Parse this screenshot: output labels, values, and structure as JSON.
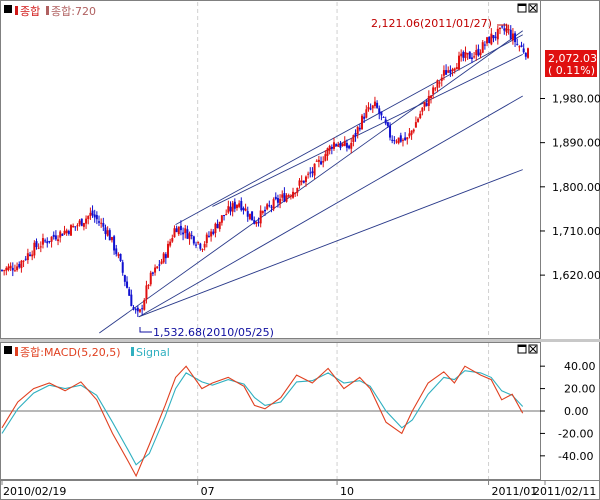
{
  "main_panel": {
    "legend_items": [
      {
        "label": "종합",
        "color": "#d01818"
      },
      {
        "label": "종합:720",
        "color": "#b06060"
      }
    ],
    "price_ticks": [
      {
        "value": 1980,
        "label": "1,980.00"
      },
      {
        "value": 1890,
        "label": "1,890.00"
      },
      {
        "value": 1800,
        "label": "1,800.00"
      },
      {
        "value": 1710,
        "label": "1,710.00"
      },
      {
        "value": 1620,
        "label": "1,620.00"
      }
    ],
    "high_annotation": "2,121.06(2011/01/27)",
    "low_annotation": "1,532.68(2010/05/25)",
    "current_price": "2,072.03",
    "current_change": "( 0.11%)",
    "colors": {
      "up": "#e01010",
      "down": "#1010d0",
      "trendline": "#2a3a8a",
      "badge": "#e01010"
    }
  },
  "macd_panel": {
    "legend_items": [
      {
        "label": "종합:MACD(5,20,5)",
        "color": "#e04020"
      },
      {
        "label": "Signal",
        "color": "#30b0c0"
      }
    ],
    "ticks": [
      {
        "value": 40,
        "label": "40.00"
      },
      {
        "value": 20,
        "label": "20.00"
      },
      {
        "value": 0,
        "label": "0.00"
      },
      {
        "value": -20,
        "label": "-20.00"
      },
      {
        "value": -40,
        "label": "-40.00"
      }
    ],
    "colors": {
      "macd": "#e04020",
      "signal": "#30b0c0"
    }
  },
  "x_axis": {
    "labels": [
      {
        "label": "2010/02/19",
        "pos": 0
      },
      {
        "label": "07",
        "pos": 0.372
      },
      {
        "label": "10",
        "pos": 0.637
      },
      {
        "label": "2011/01",
        "pos": 0.925
      },
      {
        "label": "2011/02/11",
        "pos": 1.0
      }
    ]
  },
  "chart_data": [
    {
      "type": "candlestick",
      "x_range": [
        "2010/02/19",
        "2011/02/11"
      ],
      "ylim": [
        1500,
        2140
      ],
      "y_ticks": [
        1620,
        1710,
        1800,
        1890,
        1980
      ],
      "close_path": [
        {
          "t": 0.0,
          "v": 1630
        },
        {
          "t": 0.03,
          "v": 1640
        },
        {
          "t": 0.06,
          "v": 1675
        },
        {
          "t": 0.1,
          "v": 1700
        },
        {
          "t": 0.14,
          "v": 1720
        },
        {
          "t": 0.17,
          "v": 1745
        },
        {
          "t": 0.2,
          "v": 1710
        },
        {
          "t": 0.22,
          "v": 1660
        },
        {
          "t": 0.25,
          "v": 1550
        },
        {
          "t": 0.26,
          "v": 1535
        },
        {
          "t": 0.28,
          "v": 1610
        },
        {
          "t": 0.31,
          "v": 1660
        },
        {
          "t": 0.33,
          "v": 1720
        },
        {
          "t": 0.36,
          "v": 1700
        },
        {
          "t": 0.38,
          "v": 1680
        },
        {
          "t": 0.42,
          "v": 1740
        },
        {
          "t": 0.45,
          "v": 1770
        },
        {
          "t": 0.48,
          "v": 1730
        },
        {
          "t": 0.51,
          "v": 1760
        },
        {
          "t": 0.55,
          "v": 1790
        },
        {
          "t": 0.59,
          "v": 1830
        },
        {
          "t": 0.63,
          "v": 1890
        },
        {
          "t": 0.66,
          "v": 1880
        },
        {
          "t": 0.69,
          "v": 1950
        },
        {
          "t": 0.71,
          "v": 1965
        },
        {
          "t": 0.74,
          "v": 1900
        },
        {
          "t": 0.77,
          "v": 1895
        },
        {
          "t": 0.8,
          "v": 1960
        },
        {
          "t": 0.84,
          "v": 2030
        },
        {
          "t": 0.87,
          "v": 2060
        },
        {
          "t": 0.9,
          "v": 2070
        },
        {
          "t": 0.93,
          "v": 2105
        },
        {
          "t": 0.96,
          "v": 2121
        },
        {
          "t": 0.98,
          "v": 2090
        },
        {
          "t": 1.0,
          "v": 2072
        }
      ],
      "annotations": [
        {
          "label": "2,121.06(2011/01/27)",
          "t": 0.96,
          "v": 2121.06
        },
        {
          "label": "1,532.68(2010/05/25)",
          "t": 0.26,
          "v": 1532.68
        }
      ],
      "current": {
        "value": 2072.03,
        "change_pct": 0.11
      }
    },
    {
      "type": "line",
      "ylim": [
        -58,
        58
      ],
      "y_ticks": [
        40,
        20,
        0,
        -20,
        -40
      ],
      "series": [
        {
          "name": "종합:MACD(5,20,5)",
          "points": [
            {
              "t": 0.0,
              "v": -15
            },
            {
              "t": 0.03,
              "v": 8
            },
            {
              "t": 0.06,
              "v": 20
            },
            {
              "t": 0.09,
              "v": 25
            },
            {
              "t": 0.12,
              "v": 18
            },
            {
              "t": 0.15,
              "v": 26
            },
            {
              "t": 0.18,
              "v": 10
            },
            {
              "t": 0.21,
              "v": -20
            },
            {
              "t": 0.24,
              "v": -45
            },
            {
              "t": 0.255,
              "v": -58
            },
            {
              "t": 0.28,
              "v": -30
            },
            {
              "t": 0.31,
              "v": 5
            },
            {
              "t": 0.33,
              "v": 30
            },
            {
              "t": 0.35,
              "v": 40
            },
            {
              "t": 0.38,
              "v": 20
            },
            {
              "t": 0.4,
              "v": 25
            },
            {
              "t": 0.43,
              "v": 30
            },
            {
              "t": 0.46,
              "v": 22
            },
            {
              "t": 0.48,
              "v": 5
            },
            {
              "t": 0.5,
              "v": 2
            },
            {
              "t": 0.53,
              "v": 12
            },
            {
              "t": 0.56,
              "v": 32
            },
            {
              "t": 0.59,
              "v": 25
            },
            {
              "t": 0.62,
              "v": 38
            },
            {
              "t": 0.65,
              "v": 20
            },
            {
              "t": 0.68,
              "v": 30
            },
            {
              "t": 0.7,
              "v": 20
            },
            {
              "t": 0.73,
              "v": -10
            },
            {
              "t": 0.76,
              "v": -20
            },
            {
              "t": 0.78,
              "v": 0
            },
            {
              "t": 0.81,
              "v": 25
            },
            {
              "t": 0.84,
              "v": 35
            },
            {
              "t": 0.86,
              "v": 25
            },
            {
              "t": 0.88,
              "v": 40
            },
            {
              "t": 0.91,
              "v": 32
            },
            {
              "t": 0.93,
              "v": 28
            },
            {
              "t": 0.95,
              "v": 10
            },
            {
              "t": 0.97,
              "v": 15
            },
            {
              "t": 0.99,
              "v": -2
            }
          ]
        },
        {
          "name": "Signal",
          "points": [
            {
              "t": 0.0,
              "v": -20
            },
            {
              "t": 0.03,
              "v": 2
            },
            {
              "t": 0.06,
              "v": 16
            },
            {
              "t": 0.09,
              "v": 23
            },
            {
              "t": 0.12,
              "v": 20
            },
            {
              "t": 0.15,
              "v": 23
            },
            {
              "t": 0.18,
              "v": 14
            },
            {
              "t": 0.21,
              "v": -10
            },
            {
              "t": 0.24,
              "v": -35
            },
            {
              "t": 0.255,
              "v": -48
            },
            {
              "t": 0.28,
              "v": -38
            },
            {
              "t": 0.31,
              "v": -5
            },
            {
              "t": 0.33,
              "v": 20
            },
            {
              "t": 0.35,
              "v": 34
            },
            {
              "t": 0.38,
              "v": 26
            },
            {
              "t": 0.4,
              "v": 23
            },
            {
              "t": 0.43,
              "v": 28
            },
            {
              "t": 0.46,
              "v": 24
            },
            {
              "t": 0.48,
              "v": 12
            },
            {
              "t": 0.5,
              "v": 5
            },
            {
              "t": 0.53,
              "v": 8
            },
            {
              "t": 0.56,
              "v": 26
            },
            {
              "t": 0.59,
              "v": 27
            },
            {
              "t": 0.62,
              "v": 34
            },
            {
              "t": 0.65,
              "v": 25
            },
            {
              "t": 0.68,
              "v": 27
            },
            {
              "t": 0.7,
              "v": 22
            },
            {
              "t": 0.73,
              "v": 0
            },
            {
              "t": 0.76,
              "v": -15
            },
            {
              "t": 0.78,
              "v": -8
            },
            {
              "t": 0.81,
              "v": 15
            },
            {
              "t": 0.84,
              "v": 30
            },
            {
              "t": 0.86,
              "v": 28
            },
            {
              "t": 0.88,
              "v": 36
            },
            {
              "t": 0.91,
              "v": 34
            },
            {
              "t": 0.93,
              "v": 30
            },
            {
              "t": 0.95,
              "v": 18
            },
            {
              "t": 0.97,
              "v": 14
            },
            {
              "t": 0.99,
              "v": 4
            }
          ]
        }
      ]
    }
  ]
}
